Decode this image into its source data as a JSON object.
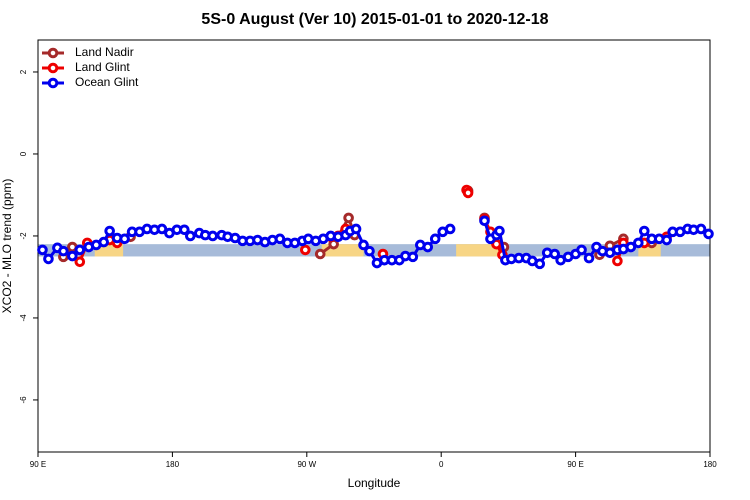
{
  "chart_data": {
    "type": "line",
    "title": "5S-0 August (Ver 10)   2015-01-01 to 2020-12-18",
    "x_label": "Longitude",
    "y_label": "XCO2 - MLO trend (ppm)",
    "xlim": [
      90,
      540
    ],
    "ylim": [
      -7.27,
      2.78
    ],
    "xticks": [
      {
        "value": 90,
        "label": "90 E"
      },
      180,
      {
        "value": 270,
        "label": "90 W"
      },
      {
        "value": 360,
        "label": "0"
      },
      {
        "value": 450,
        "label": "90 E"
      },
      {
        "value": 540,
        "label": "180"
      }
    ],
    "yticks": [
      -6,
      -4,
      -2,
      0,
      2
    ],
    "legend": "top-left",
    "band": {
      "ylim": [
        -2.5,
        -2.2
      ],
      "color": "#a7bbd9",
      "land_color": "#f7d585",
      "land_ranges": [
        [
          128,
          147
        ],
        [
          280,
          308
        ],
        [
          370,
          400
        ],
        [
          492,
          507
        ]
      ]
    },
    "series": [
      {
        "name": "Land Nadir",
        "color": "#a52a2a",
        "x": [
          107,
          113,
          152,
          279,
          288,
          298,
          302,
          378,
          389,
          402,
          466,
          473,
          482,
          501
        ],
        "values": [
          -2.51,
          -2.27,
          -2.02,
          -2.44,
          -2.2,
          -1.56,
          -1.98,
          -0.9,
          -1.56,
          -2.27,
          -2.46,
          -2.24,
          -2.07,
          -2.17
        ]
      },
      {
        "name": "Land Glint",
        "color": "#ee0000",
        "x": [
          118,
          123,
          138,
          143,
          269,
          286,
          291,
          296,
          321,
          377,
          378,
          389,
          393,
          397,
          401,
          478,
          482,
          496,
          511
        ],
        "values": [
          -2.63,
          -2.17,
          -2.1,
          -2.17,
          -2.34,
          -2.02,
          -2.0,
          -1.83,
          -2.44,
          -0.88,
          -0.95,
          -1.59,
          -1.9,
          -2.2,
          -2.46,
          -2.61,
          -2.17,
          -2.17,
          -2.02
        ]
      },
      {
        "name": "Ocean Glint",
        "color": "#0000ee",
        "x": [
          93,
          97,
          103,
          107,
          113,
          118,
          124,
          129,
          134,
          138,
          143,
          148,
          153,
          158,
          163,
          168,
          173,
          178,
          183,
          188,
          192,
          198,
          202,
          207,
          213,
          217,
          222,
          227,
          232,
          237,
          242,
          247,
          252,
          257,
          262,
          267,
          271,
          276,
          281,
          286,
          291,
          296,
          299,
          303,
          308,
          312,
          317,
          322,
          327,
          332,
          336,
          341,
          346,
          351,
          356,
          361,
          366,
          389,
          393,
          397,
          399,
          403,
          407,
          412,
          417,
          421,
          426,
          431,
          436,
          440,
          445,
          450,
          454,
          459,
          464,
          468,
          473,
          478,
          482,
          487,
          492,
          496,
          501,
          506,
          511,
          515,
          520,
          525,
          529,
          534,
          539
        ],
        "values": [
          -2.34,
          -2.56,
          -2.29,
          -2.37,
          -2.49,
          -2.34,
          -2.27,
          -2.22,
          -2.15,
          -1.88,
          -2.05,
          -2.07,
          -1.9,
          -1.9,
          -1.83,
          -1.85,
          -1.83,
          -1.93,
          -1.85,
          -1.85,
          -2.0,
          -1.93,
          -1.98,
          -2.0,
          -1.98,
          -2.02,
          -2.05,
          -2.12,
          -2.12,
          -2.1,
          -2.15,
          -2.1,
          -2.07,
          -2.17,
          -2.17,
          -2.12,
          -2.07,
          -2.12,
          -2.07,
          -2.0,
          -2.02,
          -1.98,
          -1.88,
          -1.83,
          -2.22,
          -2.37,
          -2.66,
          -2.59,
          -2.59,
          -2.59,
          -2.49,
          -2.51,
          -2.22,
          -2.27,
          -2.07,
          -1.9,
          -1.83,
          -1.63,
          -2.07,
          -1.98,
          -1.88,
          -2.59,
          -2.56,
          -2.54,
          -2.54,
          -2.61,
          -2.68,
          -2.41,
          -2.44,
          -2.59,
          -2.51,
          -2.44,
          -2.34,
          -2.54,
          -2.27,
          -2.37,
          -2.41,
          -2.34,
          -2.32,
          -2.27,
          -2.17,
          -1.88,
          -2.07,
          -2.07,
          -2.1,
          -1.9,
          -1.9,
          -1.83,
          -1.85,
          -1.83,
          -1.95
        ]
      }
    ]
  }
}
